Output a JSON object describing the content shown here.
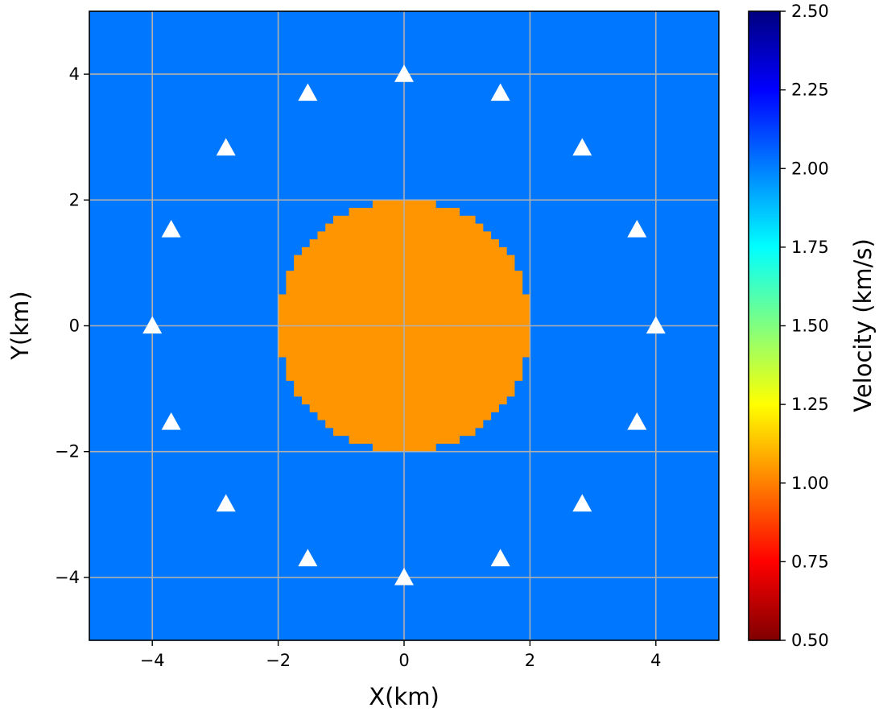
{
  "chart_data": {
    "type": "heatmap",
    "title": "",
    "xlabel": "X(km)",
    "ylabel": "Y(km)",
    "xlim": [
      -5,
      5
    ],
    "ylim": [
      -5,
      5
    ],
    "x_ticks": [
      -4,
      -2,
      0,
      2,
      4
    ],
    "y_ticks": [
      -4,
      -2,
      0,
      2,
      4
    ],
    "grid": true,
    "colormap": "jet",
    "colorbar": {
      "label": "Velocity (km/s)",
      "range": [
        0.5,
        2.5
      ],
      "ticks": [
        0.5,
        0.75,
        1.0,
        1.25,
        1.5,
        1.75,
        2.0,
        2.25,
        2.5
      ],
      "tick_labels": [
        "0.50",
        "0.75",
        "1.00",
        "1.25",
        "1.50",
        "1.75",
        "2.00",
        "2.25",
        "2.50"
      ]
    },
    "velocity_model": {
      "background_velocity": 2.0,
      "anomaly": {
        "shape": "circle",
        "center": [
          0,
          0
        ],
        "radius": 2.0,
        "velocity": 1.0
      },
      "grid_cell_size": 0.125
    },
    "stations": {
      "marker": "triangle",
      "color": "#ffffff",
      "points": [
        {
          "x": 4.0,
          "y": 0.0
        },
        {
          "x": 3.7,
          "y": 1.53
        },
        {
          "x": 2.83,
          "y": 2.83
        },
        {
          "x": 1.53,
          "y": 3.7
        },
        {
          "x": 0.0,
          "y": 4.0
        },
        {
          "x": -1.53,
          "y": 3.7
        },
        {
          "x": -2.83,
          "y": 2.83
        },
        {
          "x": -3.7,
          "y": 1.53
        },
        {
          "x": -4.0,
          "y": 0.0
        },
        {
          "x": -3.7,
          "y": -1.53
        },
        {
          "x": -2.83,
          "y": -2.83
        },
        {
          "x": -1.53,
          "y": -3.7
        },
        {
          "x": 0.0,
          "y": -4.0
        },
        {
          "x": 1.53,
          "y": -3.7
        },
        {
          "x": 2.83,
          "y": -2.83
        },
        {
          "x": 3.7,
          "y": -1.53
        }
      ]
    },
    "colors": {
      "background_velocity": "#0077ff",
      "anomaly_velocity": "#ff9500",
      "grid": "#b0b0b0"
    }
  }
}
